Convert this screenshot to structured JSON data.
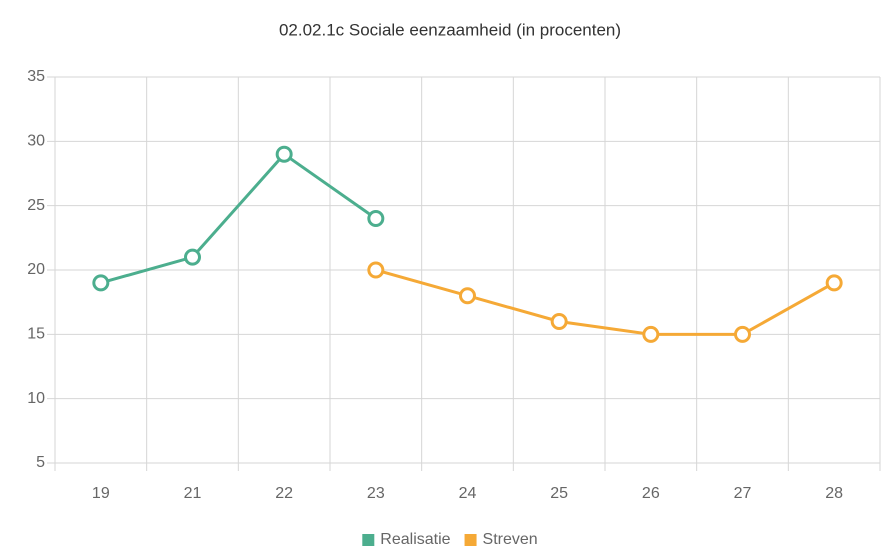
{
  "chart_data": {
    "type": "line",
    "title": "02.02.1c Sociale eenzaamheid (in procenten)",
    "categories": [
      "19",
      "21",
      "22",
      "23",
      "24",
      "25",
      "26",
      "27",
      "28"
    ],
    "series": [
      {
        "name": "Realisatie",
        "color": "#4cae8e",
        "values": [
          19,
          21,
          29,
          24,
          null,
          null,
          null,
          null,
          null
        ]
      },
      {
        "name": "Streven",
        "color": "#f5a936",
        "values": [
          null,
          null,
          null,
          20,
          18,
          16,
          15,
          15,
          19
        ]
      }
    ],
    "ylim": [
      5,
      35
    ],
    "yticks": [
      5,
      10,
      15,
      20,
      25,
      30,
      35
    ],
    "grid": true,
    "legend": "bottom"
  }
}
